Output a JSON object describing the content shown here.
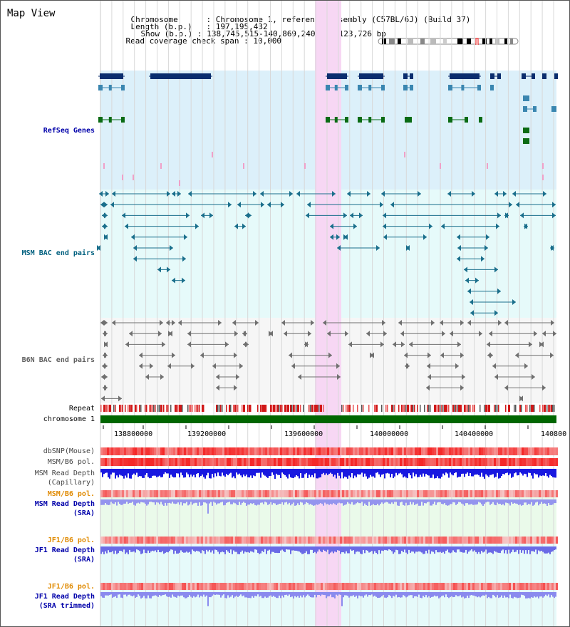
{
  "window": {
    "title": "Map View"
  },
  "info": {
    "chromosome_label": "Chromosome",
    "chromosome_value": ": Chromosome 1, reference assembly (C57BL/6J) (Build 37)",
    "length_label": "Length (b.p.)",
    "length_value": ": 197,195,432",
    "show_label": "Show (b.p.)",
    "show_value": ": 138,745,515-140,869,240 : 2,123,726 bp",
    "coverage_label": "Read coverage check span",
    "coverage_value": ": 10,000"
  },
  "tracks": {
    "refseq": {
      "label": "RefSeq Genes",
      "color": "#0000aa"
    },
    "msm_bac": {
      "label": "MSM BAC end pairs",
      "color": "#00607f"
    },
    "b6n_bac": {
      "label": "B6N BAC end pairs",
      "color": "#606060"
    },
    "repeat": {
      "label": "Repeat"
    },
    "chromosome": {
      "label": "chromosome 1",
      "color": "#006600"
    },
    "dbsnp": {
      "label": "dbSNP(Mouse)"
    },
    "msm_b6_pol_1": {
      "label": "MSM/B6 pol."
    },
    "msm_read_depth_cap": {
      "label1": "MSM Read Depth",
      "label2": "(Capillary)"
    },
    "msm_b6_pol_2": {
      "label": "MSM/B6 pol.",
      "color": "#e08a00"
    },
    "msm_read_depth_sra": {
      "label1": "MSM Read Depth",
      "label2": "(SRA)",
      "color": "#0000aa"
    },
    "jf1_b6_pol_1": {
      "label": "JF1/B6 pol.",
      "color": "#e08a00"
    },
    "jf1_read_depth_sra": {
      "label1": "JF1 Read Depth",
      "label2": "(SRA)",
      "color": "#0000aa"
    },
    "jf1_b6_pol_2": {
      "label": "JF1/B6 pol.",
      "color": "#e08a00"
    },
    "jf1_read_depth_trim": {
      "label1": "JF1 Read Depth",
      "label2": "(SRA trimmed)",
      "color": "#0000aa"
    }
  },
  "ruler": {
    "ticks": [
      "138800000",
      "139200000",
      "139600000",
      "140000000",
      "140400000",
      "140800"
    ]
  },
  "colors": {
    "highlight": "#f7d7f4",
    "refseq_bg": "#dcf0fa",
    "msm_bg": "#e6fafa",
    "b6n_bg": "#f8f8f8"
  }
}
